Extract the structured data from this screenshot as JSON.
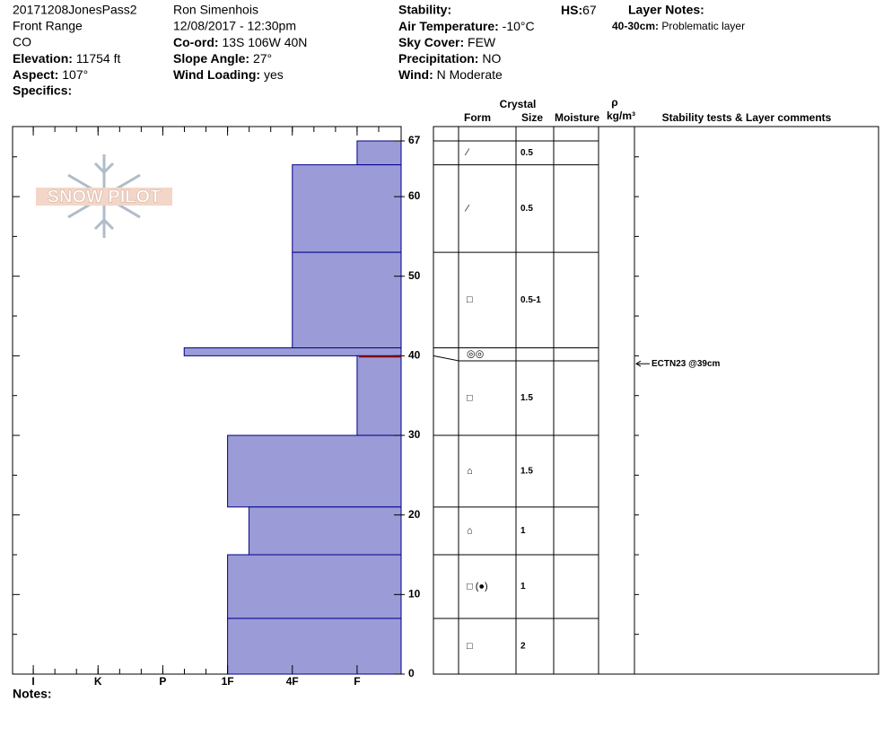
{
  "header": {
    "col1": [
      "20171208JonesPass2",
      "Front Range",
      "CO"
    ],
    "elevation": {
      "label": "Elevation:",
      "value": "11754 ft"
    },
    "aspect": {
      "label": "Aspect:",
      "value": "107°"
    },
    "specifics": {
      "label": "Specifics:"
    },
    "observer": "Ron Simenhois",
    "datetime": "12/08/2017 - 12:30pm",
    "coord": {
      "label": "Co-ord:",
      "value": "13S 106W 40N"
    },
    "slope": {
      "label": "Slope Angle:",
      "value": "27°"
    },
    "wind_loading": {
      "label": "Wind Loading:",
      "value": "yes"
    },
    "stability": {
      "label": "Stability:"
    },
    "air_temp": {
      "label": "Air Temperature:",
      "value": "-10°C"
    },
    "sky": {
      "label": "Sky Cover:",
      "value": "FEW"
    },
    "precip": {
      "label": "Precipitation:",
      "value": "NO"
    },
    "wind": {
      "label": "Wind:",
      "value": "N Moderate"
    },
    "hs": {
      "label": "HS:",
      "value": "67"
    },
    "layer_notes": {
      "label": "Layer Notes:",
      "note_label": "40-30cm:",
      "note": "Problematic layer"
    }
  },
  "logo": "SNOW PILOT",
  "profile": {
    "ylim": [
      0,
      67
    ],
    "yticks": [
      0,
      10,
      20,
      30,
      40,
      50,
      60,
      67
    ],
    "xlim": [
      -0.32,
      5.68
    ],
    "xticks": [
      {
        "value": 0,
        "label": "I"
      },
      {
        "value": 1,
        "label": "K"
      },
      {
        "value": 2,
        "label": "P"
      },
      {
        "value": 3,
        "label": "1F"
      },
      {
        "value": 4,
        "label": "4F"
      },
      {
        "value": 5,
        "label": "F"
      }
    ],
    "color": "#9b9bd7",
    "layers": [
      {
        "top": 67,
        "bottom": 64,
        "hardness": 5,
        "form": "⁄",
        "size": "0.5"
      },
      {
        "top": 64,
        "bottom": 53,
        "hardness": 4,
        "form": "⁄",
        "size": "0.5"
      },
      {
        "top": 53,
        "bottom": 41,
        "hardness": 4,
        "form": "□",
        "size": "0.5-1"
      },
      {
        "top": 41,
        "bottom": 40,
        "hardness": 2.33,
        "form": "◎◎"
      },
      {
        "top": 40,
        "bottom": 30,
        "hardness": 5,
        "form": "□",
        "size": "1.5"
      },
      {
        "top": 30,
        "bottom": 21,
        "hardness": 3,
        "form": "⌂",
        "size": "1.5"
      },
      {
        "top": 21,
        "bottom": 15,
        "hardness": 3.33,
        "form": "⌂",
        "size": "1"
      },
      {
        "top": 15,
        "bottom": 7,
        "hardness": 3,
        "form": "□ (●)",
        "size": "1"
      },
      {
        "top": 7,
        "bottom": 0,
        "hardness": 3,
        "form": "□",
        "size": "2"
      }
    ],
    "test": {
      "text": "ECTN23 @39cm",
      "depth": 39
    }
  },
  "table_headers": {
    "crystal": "Crystal",
    "form": "Form",
    "size": "Size",
    "moisture": "Moisture",
    "rho": "ρ",
    "density": "kg/m³",
    "comments": "Stability tests & Layer comments"
  },
  "notes": {
    "label": "Notes:"
  }
}
